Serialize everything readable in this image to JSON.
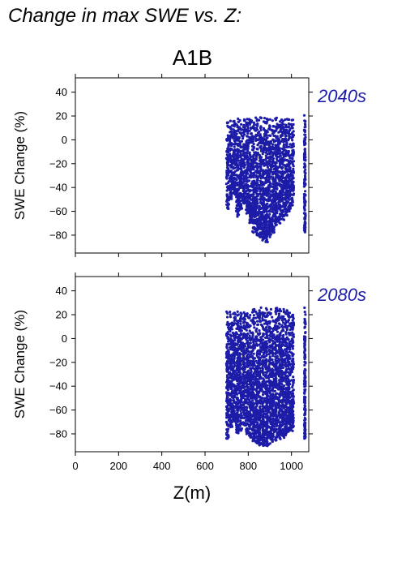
{
  "header": {
    "title": "Change in max SWE vs. Z:",
    "scenario": "A1B"
  },
  "chart_data": [
    {
      "type": "scatter",
      "panel_label": "2040s",
      "ylabel": "SWE Change (%)",
      "xlabel": "",
      "xlim": [
        0,
        1080
      ],
      "ylim": [
        -95,
        52
      ],
      "xticks": [
        0,
        200,
        400,
        600,
        800,
        1000
      ],
      "xtick_labels": [
        "",
        "",
        "",
        "",
        "",
        ""
      ],
      "yticks": [
        -80,
        -60,
        -40,
        -20,
        0,
        20,
        40
      ],
      "ytick_labels": [
        "−80",
        "−60",
        "−40",
        "−20",
        "0",
        "20",
        "40"
      ],
      "grid": false,
      "color": "#1c1ca8",
      "x_range_of_points": [
        700,
        1065
      ],
      "columns": [
        {
          "x": 705,
          "min": -58,
          "max": 16
        },
        {
          "x": 720,
          "min": -50,
          "max": 17
        },
        {
          "x": 735,
          "min": -46,
          "max": 17
        },
        {
          "x": 750,
          "min": -65,
          "max": 18
        },
        {
          "x": 765,
          "min": -60,
          "max": 17
        },
        {
          "x": 780,
          "min": -55,
          "max": 18
        },
        {
          "x": 795,
          "min": -62,
          "max": 18
        },
        {
          "x": 810,
          "min": -70,
          "max": 18
        },
        {
          "x": 825,
          "min": -78,
          "max": 19
        },
        {
          "x": 840,
          "min": -80,
          "max": 20
        },
        {
          "x": 855,
          "min": -82,
          "max": 20
        },
        {
          "x": 870,
          "min": -85,
          "max": 20
        },
        {
          "x": 885,
          "min": -86,
          "max": 19
        },
        {
          "x": 900,
          "min": -82,
          "max": 19
        },
        {
          "x": 915,
          "min": -78,
          "max": 18
        },
        {
          "x": 930,
          "min": -72,
          "max": 19
        },
        {
          "x": 945,
          "min": -70,
          "max": 19
        },
        {
          "x": 960,
          "min": -68,
          "max": 18
        },
        {
          "x": 975,
          "min": -64,
          "max": 19
        },
        {
          "x": 990,
          "min": -60,
          "max": 18
        },
        {
          "x": 1005,
          "min": -55,
          "max": 18
        },
        {
          "x": 1062,
          "min": -78,
          "max": 22
        }
      ]
    },
    {
      "type": "scatter",
      "panel_label": "2080s",
      "ylabel": "SWE Change (%)",
      "xlabel": "Z(m)",
      "xlim": [
        0,
        1080
      ],
      "ylim": [
        -95,
        52
      ],
      "xticks": [
        0,
        200,
        400,
        600,
        800,
        1000
      ],
      "xtick_labels": [
        "0",
        "200",
        "400",
        "600",
        "800",
        "1000"
      ],
      "yticks": [
        -80,
        -60,
        -40,
        -20,
        0,
        20,
        40
      ],
      "ytick_labels": [
        "−80",
        "−60",
        "−40",
        "−20",
        "0",
        "20",
        "40"
      ],
      "grid": false,
      "color": "#1c1ca8",
      "x_range_of_points": [
        700,
        1065
      ],
      "columns": [
        {
          "x": 705,
          "min": -84,
          "max": 23
        },
        {
          "x": 720,
          "min": -75,
          "max": 24
        },
        {
          "x": 735,
          "min": -70,
          "max": 24
        },
        {
          "x": 750,
          "min": -80,
          "max": 25
        },
        {
          "x": 765,
          "min": -78,
          "max": 24
        },
        {
          "x": 780,
          "min": -74,
          "max": 25
        },
        {
          "x": 795,
          "min": -80,
          "max": 25
        },
        {
          "x": 810,
          "min": -84,
          "max": 25
        },
        {
          "x": 825,
          "min": -86,
          "max": 26
        },
        {
          "x": 840,
          "min": -88,
          "max": 26
        },
        {
          "x": 855,
          "min": -90,
          "max": 26
        },
        {
          "x": 870,
          "min": -90,
          "max": 26
        },
        {
          "x": 885,
          "min": -91,
          "max": 26
        },
        {
          "x": 900,
          "min": -90,
          "max": 26
        },
        {
          "x": 915,
          "min": -88,
          "max": 25
        },
        {
          "x": 930,
          "min": -86,
          "max": 26
        },
        {
          "x": 945,
          "min": -85,
          "max": 25
        },
        {
          "x": 960,
          "min": -84,
          "max": 25
        },
        {
          "x": 975,
          "min": -82,
          "max": 25
        },
        {
          "x": 990,
          "min": -80,
          "max": 25
        },
        {
          "x": 1005,
          "min": -78,
          "max": 24
        },
        {
          "x": 1062,
          "min": -84,
          "max": 27
        }
      ]
    }
  ]
}
